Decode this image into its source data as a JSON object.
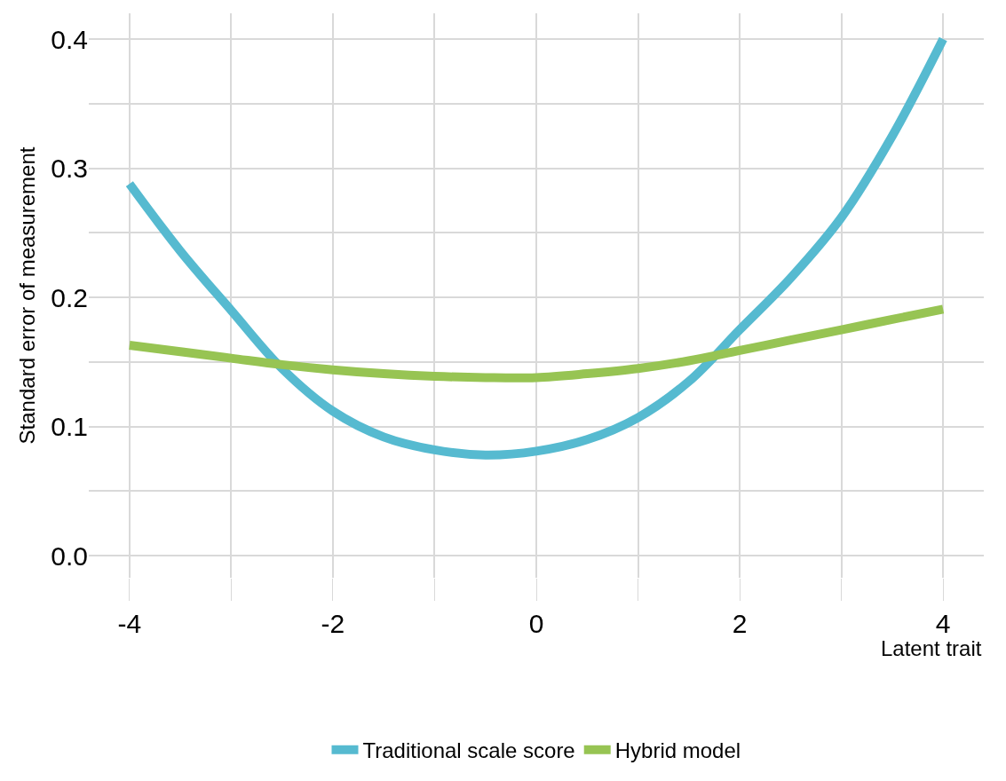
{
  "chart_data": {
    "type": "line",
    "xlabel": "Latent trait",
    "ylabel": "Standard error of measurement",
    "x": [
      -4,
      -3.5,
      -3,
      -2.5,
      -2,
      -1.5,
      -1,
      -0.5,
      0,
      0.5,
      1,
      1.5,
      2,
      2.5,
      3,
      3.5,
      4
    ],
    "series": [
      {
        "name": "Traditional scale score",
        "color": "#56bad0",
        "values": [
          0.288,
          0.236,
          0.19,
          0.145,
          0.112,
          0.092,
          0.082,
          0.078,
          0.081,
          0.09,
          0.107,
          0.135,
          0.175,
          0.215,
          0.262,
          0.325,
          0.4
        ]
      },
      {
        "name": "Hybrid model",
        "color": "#97c453",
        "values": [
          0.163,
          0.158,
          0.153,
          0.148,
          0.144,
          0.141,
          0.139,
          0.138,
          0.138,
          0.141,
          0.145,
          0.151,
          0.159,
          0.167,
          0.175,
          0.183,
          0.191
        ]
      }
    ],
    "xlim": [
      -4.4,
      4.4
    ],
    "ylim": [
      -0.017,
      0.42
    ],
    "xticks": [
      -4,
      {
        "value": -3,
        "label": null
      },
      -2,
      {
        "value": -1,
        "label": null
      },
      0,
      {
        "value": 1,
        "label": null
      },
      2,
      {
        "value": 3,
        "label": null
      },
      4
    ],
    "yticks": [
      {
        "value": 0,
        "label": "0.0"
      },
      {
        "value": 0.05,
        "label": null
      },
      0.1,
      {
        "value": 0.15,
        "label": null
      },
      0.2,
      {
        "value": 0.25,
        "label": null
      },
      0.3,
      {
        "value": 0.35,
        "label": null
      },
      0.4
    ],
    "grid": true,
    "legend": "bottom",
    "marker": "none",
    "line_style": "solid"
  }
}
